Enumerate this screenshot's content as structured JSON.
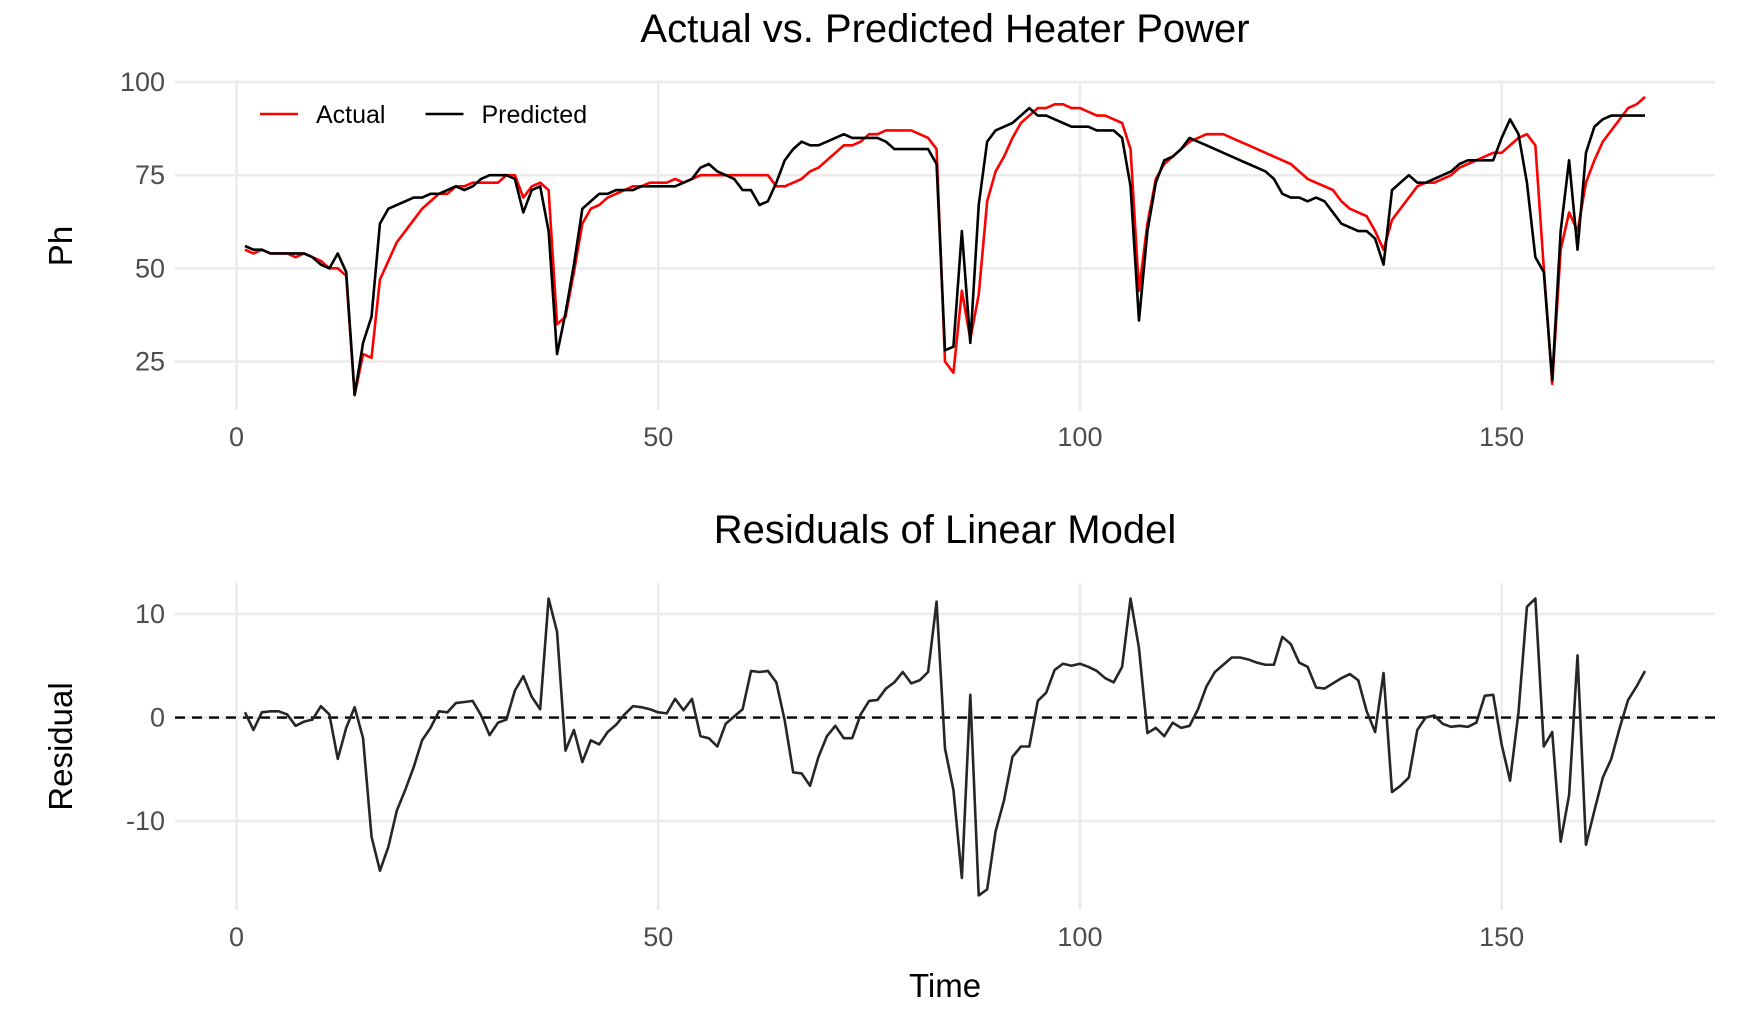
{
  "chart_data": [
    {
      "type": "line",
      "title": "Actual vs. Predicted Heater Power",
      "y_label": "Ph",
      "x": [
        1,
        2,
        3,
        4,
        5,
        6,
        7,
        8,
        9,
        10,
        11,
        12,
        13,
        14,
        15,
        16,
        17,
        18,
        19,
        20,
        21,
        22,
        23,
        24,
        25,
        26,
        27,
        28,
        29,
        30,
        31,
        32,
        33,
        34,
        35,
        36,
        37,
        38,
        39,
        40,
        41,
        42,
        43,
        44,
        45,
        46,
        47,
        48,
        49,
        50,
        51,
        52,
        53,
        54,
        55,
        56,
        57,
        58,
        59,
        60,
        61,
        62,
        63,
        64,
        65,
        66,
        67,
        68,
        69,
        70,
        71,
        72,
        73,
        74,
        75,
        76,
        77,
        78,
        79,
        80,
        81,
        82,
        83,
        84,
        85,
        86,
        87,
        88,
        89,
        90,
        91,
        92,
        93,
        94,
        95,
        96,
        97,
        98,
        99,
        100,
        101,
        102,
        103,
        104,
        105,
        106,
        107,
        108,
        109,
        110,
        111,
        112,
        113,
        114,
        115,
        116,
        117,
        118,
        119,
        120,
        121,
        122,
        123,
        124,
        125,
        126,
        127,
        128,
        129,
        130,
        131,
        132,
        133,
        134,
        135,
        136,
        137,
        138,
        139,
        140,
        141,
        142,
        143,
        144,
        145,
        146,
        147,
        148,
        149,
        150,
        151,
        152,
        153,
        154,
        155,
        156,
        157,
        158,
        159,
        160,
        161,
        162,
        163,
        164,
        165,
        166,
        167
      ],
      "series": [
        {
          "name": "Actual",
          "color": "#ff0000",
          "values": [
            55,
            54,
            55,
            54,
            54,
            54,
            53,
            54,
            53,
            52,
            50,
            50,
            48,
            16,
            27,
            26,
            47,
            52,
            57,
            60,
            63,
            66,
            68,
            70,
            70,
            72,
            72,
            73,
            73,
            73,
            73,
            75,
            75,
            69,
            72,
            73,
            71,
            35,
            37,
            49,
            62,
            66,
            67,
            69,
            70,
            71,
            72,
            72,
            73,
            73,
            73,
            74,
            73,
            74,
            75,
            75,
            75,
            75,
            75,
            75,
            75,
            75,
            75,
            72,
            72,
            73,
            74,
            76,
            77,
            79,
            81,
            83,
            83,
            84,
            86,
            86,
            87,
            87,
            87,
            87,
            86,
            85,
            82,
            25,
            22,
            44,
            31,
            43,
            68,
            76,
            80,
            85,
            89,
            91,
            93,
            93,
            94,
            94,
            93,
            93,
            92,
            91,
            91,
            90,
            89,
            82,
            44,
            62,
            74,
            78,
            80,
            82,
            84,
            85,
            86,
            86,
            86,
            85,
            84,
            83,
            82,
            81,
            80,
            79,
            78,
            76,
            74,
            73,
            72,
            71,
            68,
            66,
            65,
            64,
            60,
            55,
            63,
            66,
            69,
            72,
            73,
            73,
            74,
            75,
            77,
            78,
            79,
            80,
            81,
            81,
            83,
            85,
            86,
            83,
            50,
            19,
            55,
            65,
            60,
            73,
            79,
            84,
            87,
            90,
            93,
            94,
            96
          ]
        },
        {
          "name": "Predicted",
          "color": "#000000",
          "values": [
            56,
            55,
            55,
            54,
            54,
            54,
            54,
            54,
            53,
            51,
            50,
            54,
            49,
            16,
            30,
            37,
            62,
            66,
            67,
            68,
            69,
            69,
            70,
            70,
            71,
            72,
            71,
            72,
            74,
            75,
            75,
            75,
            74,
            65,
            71,
            72,
            60,
            27,
            38,
            51,
            66,
            68,
            70,
            70,
            71,
            71,
            71,
            72,
            72,
            72,
            72,
            72,
            73,
            74,
            77,
            78,
            76,
            75,
            74,
            71,
            71,
            67,
            68,
            73,
            79,
            82,
            84,
            83,
            83,
            84,
            85,
            86,
            85,
            85,
            85,
            85,
            84,
            82,
            82,
            82,
            82,
            82,
            78,
            28,
            29,
            60,
            30,
            67,
            84,
            87,
            88,
            89,
            91,
            93,
            91,
            91,
            90,
            89,
            88,
            88,
            88,
            87,
            87,
            87,
            85,
            72,
            36,
            60,
            73,
            79,
            80,
            82,
            85,
            84,
            83,
            82,
            81,
            80,
            79,
            78,
            77,
            76,
            74,
            70,
            69,
            69,
            68,
            69,
            68,
            65,
            62,
            61,
            60,
            60,
            58,
            51,
            71,
            73,
            75,
            73,
            73,
            74,
            75,
            76,
            78,
            79,
            79,
            79,
            79,
            85,
            90,
            86,
            73,
            53,
            49,
            20,
            60,
            79,
            55,
            81,
            88,
            90,
            91,
            91,
            91,
            91,
            91
          ]
        }
      ],
      "xlim": [
        -7.3,
        175.3
      ],
      "xticks": [
        0,
        50,
        100,
        150
      ],
      "ylim": [
        12,
        100
      ],
      "yticks": [
        25,
        50,
        75,
        100
      ],
      "grid": true,
      "legend": "top-left"
    },
    {
      "type": "line",
      "title": "Residuals of Linear Model",
      "x_label": "Time",
      "y_label": "Residual",
      "x": [
        1,
        2,
        3,
        4,
        5,
        6,
        7,
        8,
        9,
        10,
        11,
        12,
        13,
        14,
        15,
        16,
        17,
        18,
        19,
        20,
        21,
        22,
        23,
        24,
        25,
        26,
        27,
        28,
        29,
        30,
        31,
        32,
        33,
        34,
        35,
        36,
        37,
        38,
        39,
        40,
        41,
        42,
        43,
        44,
        45,
        46,
        47,
        48,
        49,
        50,
        51,
        52,
        53,
        54,
        55,
        56,
        57,
        58,
        59,
        60,
        61,
        62,
        63,
        64,
        65,
        66,
        67,
        68,
        69,
        70,
        71,
        72,
        73,
        74,
        75,
        76,
        77,
        78,
        79,
        80,
        81,
        82,
        83,
        84,
        85,
        86,
        87,
        88,
        89,
        90,
        91,
        92,
        93,
        94,
        95,
        96,
        97,
        98,
        99,
        100,
        101,
        102,
        103,
        104,
        105,
        106,
        107,
        108,
        109,
        110,
        111,
        112,
        113,
        114,
        115,
        116,
        117,
        118,
        119,
        120,
        121,
        122,
        123,
        124,
        125,
        126,
        127,
        128,
        129,
        130,
        131,
        132,
        133,
        134,
        135,
        136,
        137,
        138,
        139,
        140,
        141,
        142,
        143,
        144,
        145,
        146,
        147,
        148,
        149,
        150,
        151,
        152,
        153,
        154,
        155,
        156,
        157,
        158,
        159,
        160,
        161,
        162,
        163,
        164,
        165,
        166,
        167
      ],
      "series": [
        {
          "color": "#262626",
          "values": [
            0.5,
            -1.2,
            0.5,
            0.6,
            0.6,
            0.3,
            -0.8,
            -0.4,
            -0.2,
            1.1,
            0.3,
            -4,
            -1,
            1,
            -2,
            -11.5,
            -14.8,
            -12.5,
            -9,
            -7,
            -4.8,
            -2.2,
            -1,
            0.6,
            0.5,
            1.4,
            1.5,
            1.6,
            0.2,
            -1.7,
            -0.5,
            -0.2,
            2.6,
            4,
            2,
            0.8,
            11.5,
            8.3,
            -3.2,
            -1.2,
            -4.3,
            -2.2,
            -2.6,
            -1.4,
            -0.7,
            0.3,
            1.1,
            1,
            0.8,
            0.5,
            0.4,
            1.8,
            0.7,
            1.8,
            -1.8,
            -2,
            -2.8,
            -0.6,
            0.1,
            0.8,
            4.5,
            4.4,
            4.5,
            3.4,
            -0.3,
            -5.3,
            -5.4,
            -6.6,
            -3.8,
            -1.8,
            -0.8,
            -2,
            -2,
            0.3,
            1.6,
            1.7,
            2.8,
            3.4,
            4.4,
            3.3,
            3.6,
            4.4,
            11.2,
            -3,
            -7,
            -15.5,
            2.2,
            -17.2,
            -16.6,
            -11,
            -8,
            -3.8,
            -2.8,
            -2.8,
            1.6,
            2.4,
            4.6,
            5.2,
            5,
            5.2,
            4.9,
            4.5,
            3.8,
            3.4,
            4.9,
            11.5,
            6.7,
            -1.5,
            -1,
            -1.8,
            -0.5,
            -1,
            -0.8,
            0.8,
            3,
            4.4,
            5.1,
            5.8,
            5.8,
            5.6,
            5.3,
            5.1,
            5.1,
            7.8,
            7.1,
            5.3,
            4.9,
            2.9,
            2.8,
            3.3,
            3.8,
            4.2,
            3.6,
            0.6,
            -1.4,
            4.3,
            -7.2,
            -6.6,
            -5.8,
            -1.2,
            0,
            0.2,
            -0.6,
            -0.9,
            -0.8,
            -0.9,
            -0.5,
            2.1,
            2.2,
            -2.6,
            -6.1,
            0.5,
            10.7,
            11.5,
            -2.8,
            -1.4,
            -12,
            -7.5,
            6,
            -12.3,
            -9,
            -5.8,
            -4,
            -1,
            1.7,
            3,
            4.5
          ]
        }
      ],
      "hline": 0,
      "xlim": [
        -7.3,
        175.3
      ],
      "xticks": [
        0,
        50,
        100,
        150
      ],
      "ylim": [
        -18.6,
        13
      ],
      "yticks": [
        -10,
        0,
        10
      ],
      "grid": true
    }
  ]
}
